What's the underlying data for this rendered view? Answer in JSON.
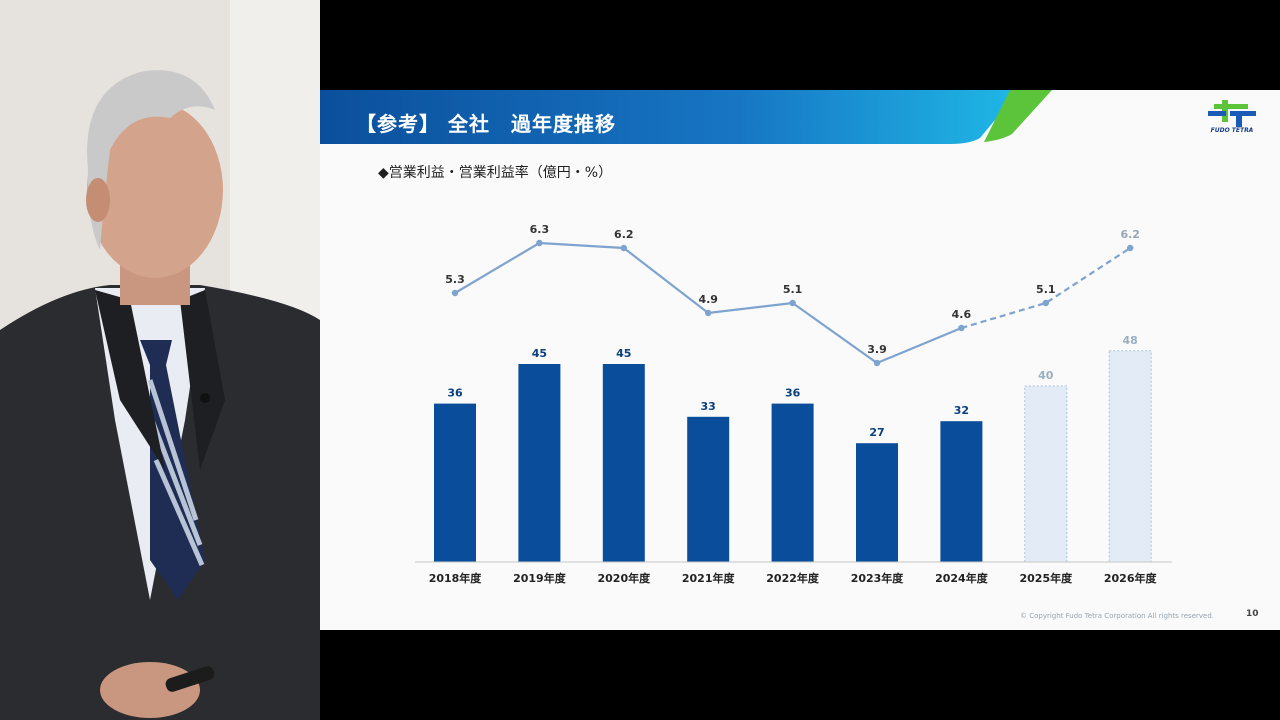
{
  "slide": {
    "title": "【参考】 全社　過年度推移",
    "subtitle": "◆営業利益・営業利益率（億円・%）",
    "logo_text": "FUDO TETRA",
    "copyright": "© Copyright Fudo Tetra Corporation All rights reserved.",
    "page_number": "10"
  },
  "colors": {
    "header_blue": "#0b4f9c",
    "header_cyan": "#1fb8e6",
    "header_green": "#5cc43a",
    "bar_actual": "#0a4e9b",
    "bar_forecast": "#e3ecf6",
    "bar_forecast_border": "#a9c4e0",
    "line_actual": "#7fa3cf",
    "line_forecast": "#7fa3cf",
    "label_actual": "#0a3f80",
    "label_forecast": "#9aaec4",
    "rate_label": "#333333",
    "rate_label_forecast": "#9aa5b1"
  },
  "chart_data": {
    "type": "bar",
    "title": "◆営業利益・営業利益率（億円・%）",
    "categories": [
      "2018年度",
      "2019年度",
      "2020年度",
      "2021年度",
      "2022年度",
      "2023年度",
      "2024年度",
      "2025年度",
      "2026年度"
    ],
    "series": [
      {
        "type": "bar",
        "values": [
          36,
          45,
          45,
          33,
          36,
          27,
          32,
          40,
          48
        ],
        "forecast_from_index": 7
      },
      {
        "type": "line",
        "values": [
          5.3,
          6.3,
          6.2,
          4.9,
          5.1,
          3.9,
          4.6,
          5.1,
          6.2
        ],
        "forecast_from_index": 6
      }
    ],
    "grid": false,
    "legend": "none"
  }
}
